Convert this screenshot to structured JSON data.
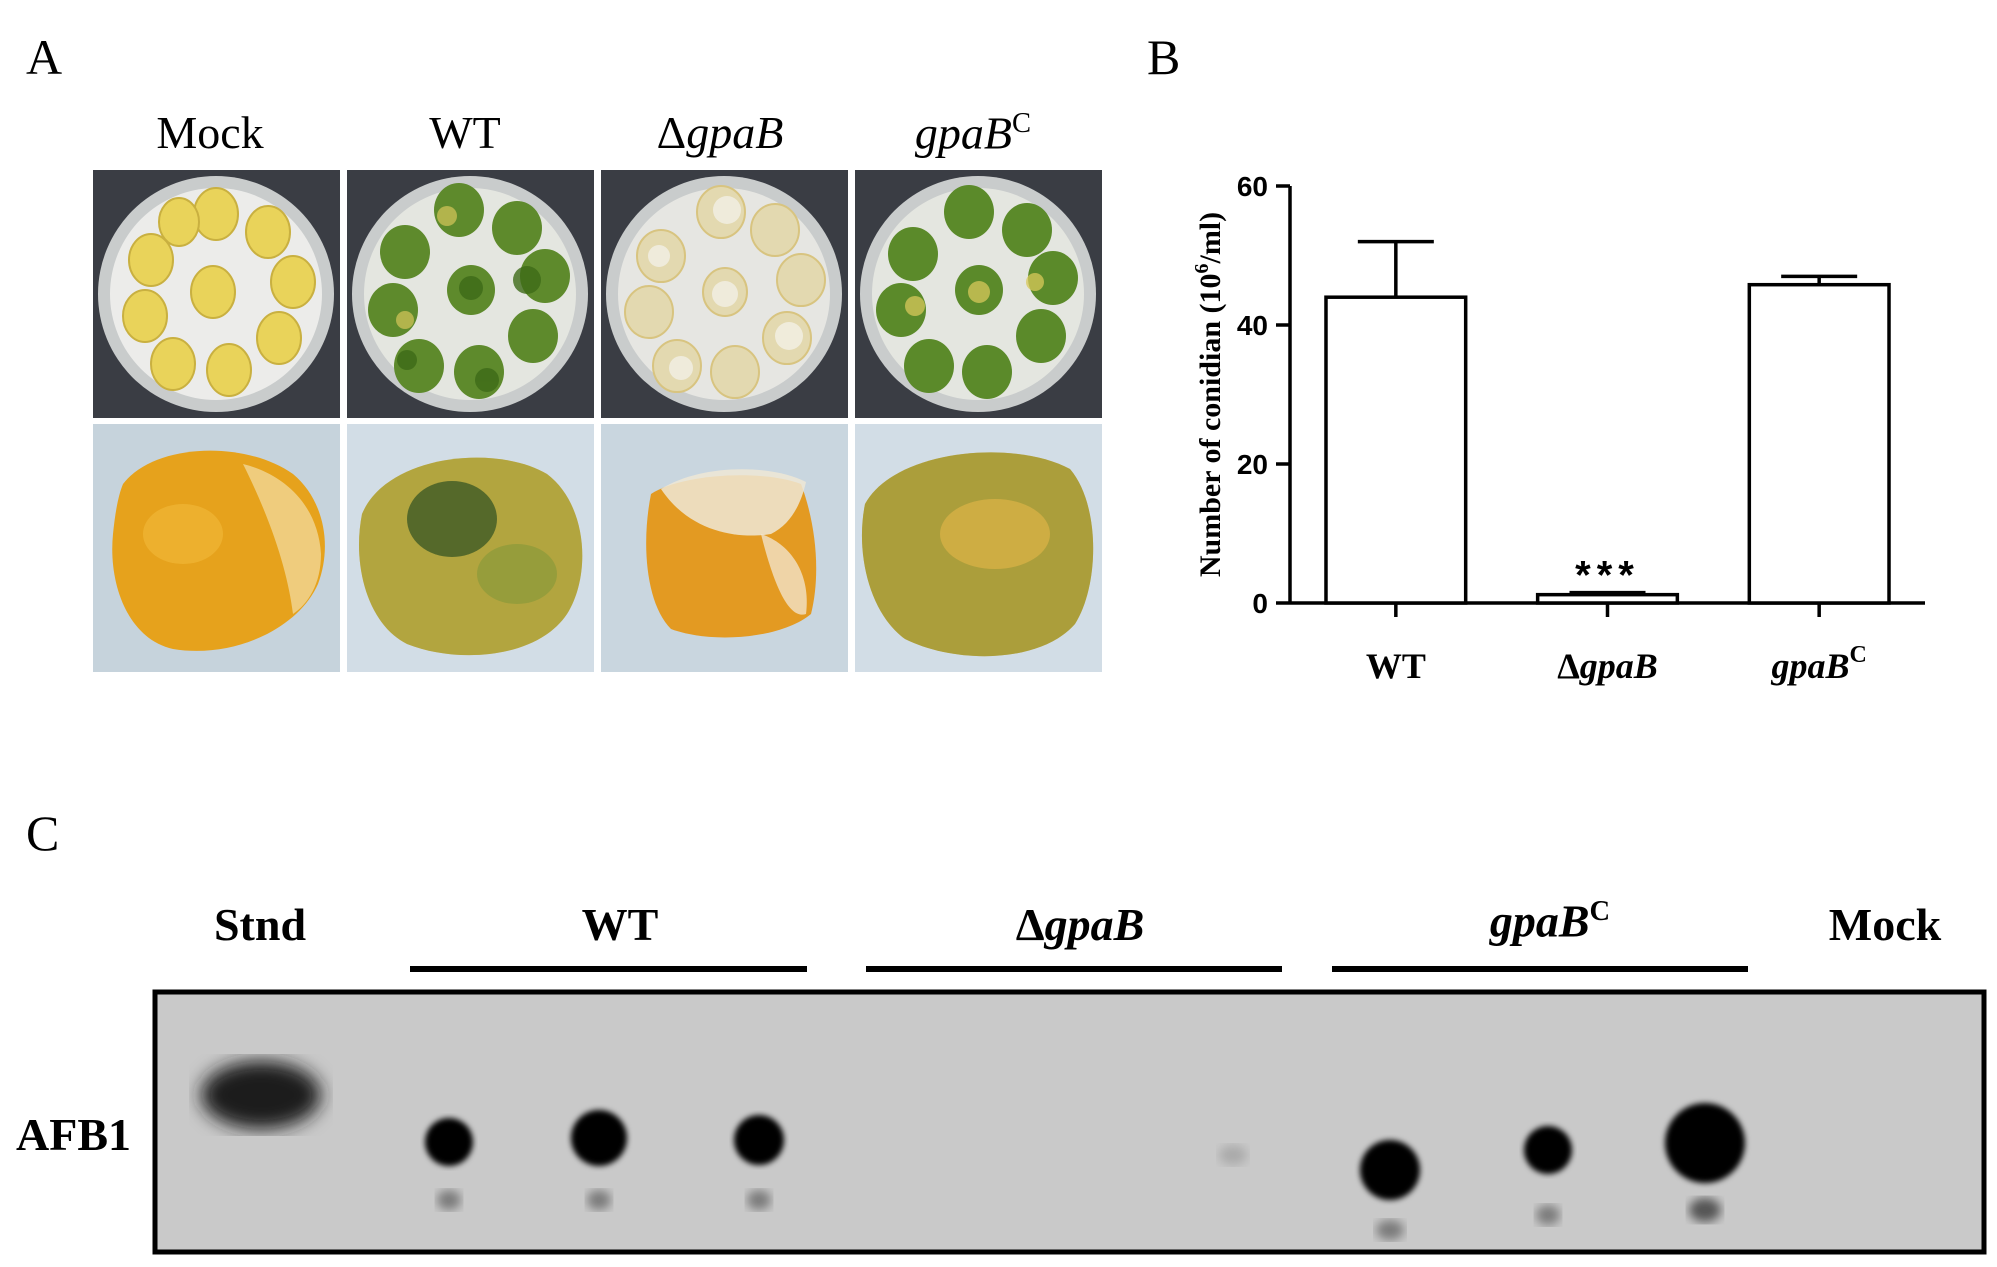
{
  "panels": {
    "a": {
      "letter": "A",
      "columns": [
        {
          "prefix": "",
          "name": "Mock",
          "sup": "",
          "italic": false
        },
        {
          "prefix": "",
          "name": "WT",
          "sup": "",
          "italic": false
        },
        {
          "prefix": "Δ",
          "name": "gpaB",
          "sup": "",
          "italic": true
        },
        {
          "prefix": "",
          "name": "gpaB",
          "sup": "C",
          "italic": true
        }
      ]
    },
    "b": {
      "letter": "B"
    },
    "c": {
      "letter": "C",
      "row_label": "AFB1",
      "lanes": {
        "stnd": "Stnd",
        "wt": "WT",
        "ko_prefix": "Δ",
        "ko_name": "gpaB",
        "comp_name": "gpaB",
        "comp_sup": "C",
        "mock": "Mock"
      }
    }
  },
  "chart_data": {
    "type": "bar",
    "categories": [
      "WT",
      "ΔgpaB",
      "gpaBC"
    ],
    "category_parts": [
      {
        "prefix": "",
        "name": "WT",
        "sup": ""
      },
      {
        "prefix": "Δ",
        "name": "gpaB",
        "sup": ""
      },
      {
        "prefix": "",
        "name": "gpaB",
        "sup": "C"
      }
    ],
    "values": [
      44,
      1.2,
      45.8
    ],
    "errors": [
      8,
      0.3,
      1.2
    ],
    "annotations": [
      {
        "category": "ΔgpaB",
        "text": "***"
      }
    ],
    "ylabel_main": "Number of conidian (10",
    "ylabel_sup": "6",
    "ylabel_tail": "/ml)",
    "yticks": [
      "0",
      "20",
      "40",
      "60"
    ],
    "ylim": [
      0,
      60
    ],
    "grid": false,
    "bar_color": "#ffffff",
    "edge_color": "#000000"
  }
}
